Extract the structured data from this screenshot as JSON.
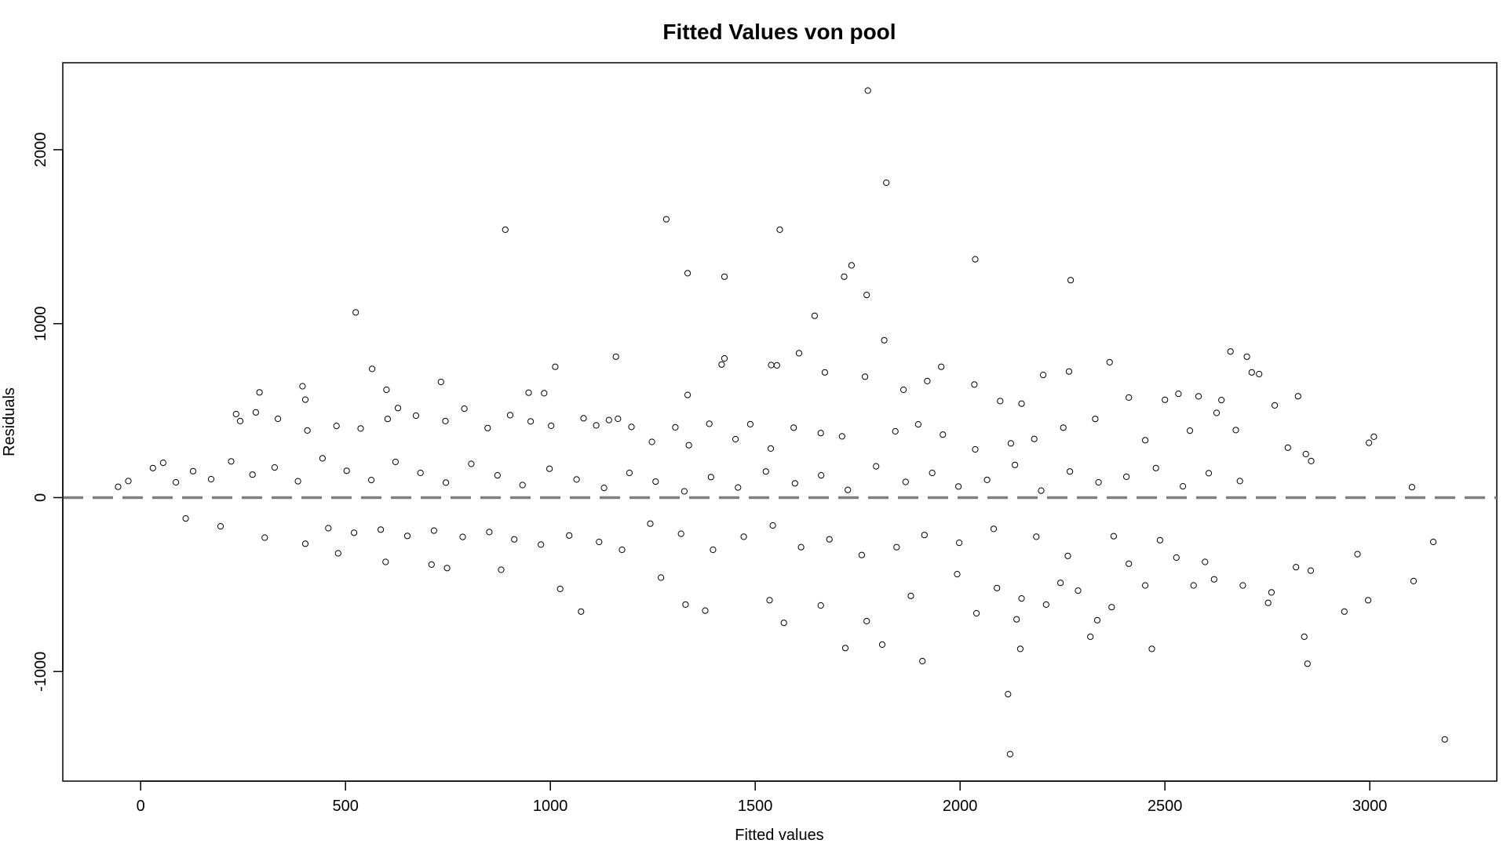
{
  "chart_data": {
    "type": "scatter",
    "title": "Fitted Values von pool",
    "xlabel": "Fitted values",
    "ylabel": "Residuals",
    "xlim": [
      -190,
      3310
    ],
    "ylim": [
      -1630,
      2500
    ],
    "x_ticks": [
      0,
      500,
      1000,
      1500,
      2000,
      2500,
      3000
    ],
    "y_ticks": [
      -1000,
      0,
      1000,
      2000
    ],
    "x_tick_labels": [
      "0",
      "500",
      "1000",
      "1500",
      "2000",
      "2500",
      "3000"
    ],
    "y_tick_labels": [
      "-1000",
      "0",
      "1000",
      "2000"
    ],
    "reference_line": {
      "y": 0,
      "style": "dashed",
      "color": "#808080"
    },
    "marker": {
      "shape": "open-circle",
      "color": "#000000"
    },
    "grid": false,
    "legend": "none",
    "series": [
      {
        "points": [
          [
            1775,
            2340
          ],
          [
            1820,
            1810
          ],
          [
            1283,
            1600
          ],
          [
            890,
            1540
          ],
          [
            1560,
            1540
          ],
          [
            2037,
            1370
          ],
          [
            1335,
            1290
          ],
          [
            1735,
            1335
          ],
          [
            1425,
            1270
          ],
          [
            1717,
            1270
          ],
          [
            2270,
            1250
          ],
          [
            525,
            1065
          ],
          [
            1772,
            1165
          ],
          [
            1645,
            1045
          ],
          [
            1815,
            905
          ],
          [
            1607,
            830
          ],
          [
            2660,
            840
          ],
          [
            2700,
            810
          ],
          [
            1160,
            810
          ],
          [
            1425,
            800
          ],
          [
            1418,
            765
          ],
          [
            565,
            740
          ],
          [
            2266,
            725
          ],
          [
            2712,
            720
          ],
          [
            1954,
            752
          ],
          [
            1012,
            752
          ],
          [
            2365,
            778
          ],
          [
            1768,
            695
          ],
          [
            2730,
            710
          ],
          [
            2203,
            705
          ],
          [
            1670,
            720
          ],
          [
            733,
            665
          ],
          [
            1920,
            670
          ],
          [
            395,
            640
          ],
          [
            1539,
            762
          ],
          [
            1553,
            760
          ],
          [
            1335,
            590
          ],
          [
            2825,
            583
          ],
          [
            2533,
            597
          ],
          [
            2412,
            575
          ],
          [
            2638,
            561
          ],
          [
            2582,
            582
          ],
          [
            2500,
            562
          ],
          [
            1862,
            620
          ],
          [
            2035,
            650
          ],
          [
            290,
            605
          ],
          [
            600,
            620
          ],
          [
            402,
            563
          ],
          [
            628,
            515
          ],
          [
            947,
            603
          ],
          [
            985,
            600
          ],
          [
            1112,
            415
          ],
          [
            1165,
            453
          ],
          [
            1305,
            404
          ],
          [
            2098,
            555
          ],
          [
            2150,
            540
          ],
          [
            2768,
            530
          ],
          [
            3010,
            350
          ],
          [
            2998,
            315
          ],
          [
            3103,
            60
          ],
          [
            2844,
            250
          ],
          [
            2857,
            210
          ],
          [
            2800,
            287
          ],
          [
            2673,
            388
          ],
          [
            2626,
            487
          ],
          [
            2561,
            385
          ],
          [
            2452,
            330
          ],
          [
            2330,
            452
          ],
          [
            2252,
            402
          ],
          [
            2181,
            337
          ],
          [
            2124,
            312
          ],
          [
            2037,
            277
          ],
          [
            1958,
            362
          ],
          [
            1898,
            421
          ],
          [
            1842,
            381
          ],
          [
            1712,
            352
          ],
          [
            1660,
            371
          ],
          [
            1594,
            402
          ],
          [
            1538,
            282
          ],
          [
            1488,
            422
          ],
          [
            1452,
            336
          ],
          [
            1388,
            424
          ],
          [
            1338,
            301
          ],
          [
            1248,
            320
          ],
          [
            1198,
            406
          ],
          [
            1143,
            446
          ],
          [
            1081,
            456
          ],
          [
            1002,
            413
          ],
          [
            952,
            438
          ],
          [
            902,
            474
          ],
          [
            847,
            400
          ],
          [
            790,
            511
          ],
          [
            744,
            440
          ],
          [
            672,
            471
          ],
          [
            603,
            452
          ],
          [
            537,
            397
          ],
          [
            478,
            412
          ],
          [
            407,
            386
          ],
          [
            335,
            453
          ],
          [
            281,
            490
          ],
          [
            243,
            440
          ],
          [
            233,
            480
          ],
          [
            3155,
            -255
          ],
          [
            3183,
            -1390
          ],
          [
            3107,
            -480
          ],
          [
            2970,
            -325
          ],
          [
            2996,
            -590
          ],
          [
            2938,
            -655
          ],
          [
            2840,
            -800
          ],
          [
            2848,
            -955
          ],
          [
            2856,
            -420
          ],
          [
            2820,
            -400
          ],
          [
            2760,
            -545
          ],
          [
            2752,
            -605
          ],
          [
            2690,
            -505
          ],
          [
            2620,
            -470
          ],
          [
            2570,
            -505
          ],
          [
            2468,
            -870
          ],
          [
            2452,
            -505
          ],
          [
            2412,
            -380
          ],
          [
            2370,
            -630
          ],
          [
            2335,
            -705
          ],
          [
            2318,
            -800
          ],
          [
            2288,
            -535
          ],
          [
            2245,
            -490
          ],
          [
            2210,
            -615
          ],
          [
            2147,
            -870
          ],
          [
            2122,
            -1475
          ],
          [
            2117,
            -1130
          ],
          [
            2138,
            -700
          ],
          [
            2150,
            -580
          ],
          [
            2090,
            -520
          ],
          [
            2040,
            -665
          ],
          [
            1993,
            -440
          ],
          [
            1908,
            -940
          ],
          [
            1880,
            -565
          ],
          [
            1810,
            -845
          ],
          [
            1772,
            -710
          ],
          [
            1720,
            -865
          ],
          [
            1660,
            -620
          ],
          [
            1570,
            -720
          ],
          [
            1535,
            -590
          ],
          [
            1378,
            -650
          ],
          [
            1330,
            -615
          ],
          [
            1270,
            -460
          ],
          [
            1075,
            -655
          ],
          [
            1024,
            -525
          ],
          [
            880,
            -415
          ],
          [
            748,
            -405
          ],
          [
            710,
            -385
          ],
          [
            598,
            -370
          ],
          [
            482,
            -320
          ],
          [
            402,
            -265
          ],
          [
            303,
            -230
          ],
          [
            195,
            -165
          ],
          [
            110,
            -120
          ],
          [
            2598,
            -370
          ],
          [
            2528,
            -345
          ],
          [
            2488,
            -245
          ],
          [
            2375,
            -222
          ],
          [
            2263,
            -335
          ],
          [
            2186,
            -225
          ],
          [
            2082,
            -180
          ],
          [
            1998,
            -260
          ],
          [
            1913,
            -215
          ],
          [
            1845,
            -285
          ],
          [
            1760,
            -330
          ],
          [
            1681,
            -240
          ],
          [
            1612,
            -285
          ],
          [
            1543,
            -160
          ],
          [
            1472,
            -225
          ],
          [
            1397,
            -300
          ],
          [
            1319,
            -208
          ],
          [
            1244,
            -150
          ],
          [
            1175,
            -300
          ],
          [
            1119,
            -255
          ],
          [
            1046,
            -218
          ],
          [
            977,
            -270
          ],
          [
            912,
            -240
          ],
          [
            851,
            -198
          ],
          [
            786,
            -226
          ],
          [
            716,
            -190
          ],
          [
            651,
            -220
          ],
          [
            586,
            -184
          ],
          [
            521,
            -202
          ],
          [
            458,
            -176
          ],
          [
            2683,
            95
          ],
          [
            2607,
            140
          ],
          [
            2544,
            65
          ],
          [
            2478,
            170
          ],
          [
            2406,
            120
          ],
          [
            2338,
            88
          ],
          [
            2268,
            150
          ],
          [
            2198,
            40
          ],
          [
            2134,
            188
          ],
          [
            2066,
            102
          ],
          [
            1996,
            64
          ],
          [
            1932,
            142
          ],
          [
            1867,
            90
          ],
          [
            1795,
            180
          ],
          [
            1726,
            44
          ],
          [
            1661,
            128
          ],
          [
            1597,
            82
          ],
          [
            1526,
            150
          ],
          [
            1458,
            58
          ],
          [
            1392,
            118
          ],
          [
            1327,
            36
          ],
          [
            1257,
            92
          ],
          [
            1193,
            142
          ],
          [
            1131,
            56
          ],
          [
            1064,
            104
          ],
          [
            998,
            166
          ],
          [
            932,
            72
          ],
          [
            871,
            128
          ],
          [
            807,
            194
          ],
          [
            745,
            86
          ],
          [
            683,
            142
          ],
          [
            622,
            205
          ],
          [
            563,
            101
          ],
          [
            503,
            154
          ],
          [
            444,
            226
          ],
          [
            384,
            94
          ],
          [
            327,
            173
          ],
          [
            273,
            132
          ],
          [
            221,
            208
          ],
          [
            172,
            106
          ],
          [
            128,
            152
          ],
          [
            86,
            88
          ],
          [
            -55,
            62
          ],
          [
            -30,
            95
          ],
          [
            30,
            170
          ],
          [
            55,
            200
          ]
        ]
      }
    ]
  }
}
